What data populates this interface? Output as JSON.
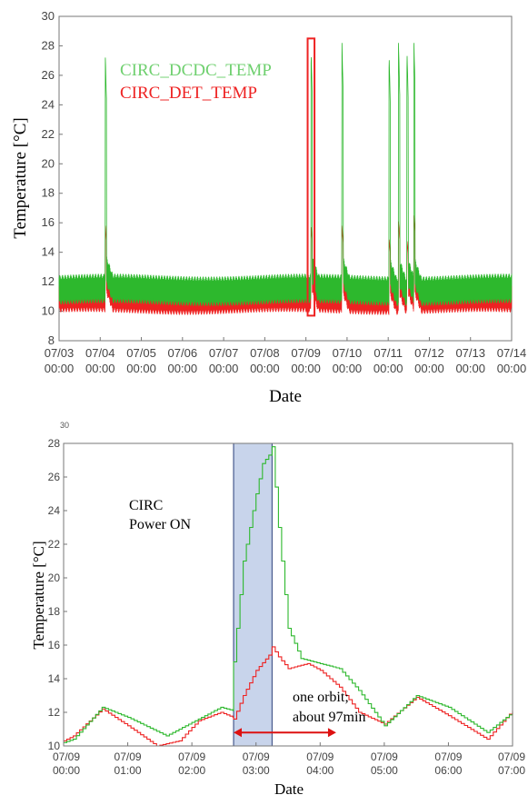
{
  "chart_data": [
    {
      "type": "line",
      "title": "",
      "xlabel": "Date",
      "ylabel": "Temperature [°C]",
      "ylim": [
        8,
        30
      ],
      "yticks": [
        8,
        10,
        12,
        14,
        16,
        18,
        20,
        22,
        24,
        26,
        28,
        30
      ],
      "xlim_days": [
        "07/03 00:00",
        "07/14 00:00"
      ],
      "xticks": [
        [
          "07/03",
          "00:00"
        ],
        [
          "07/04",
          "00:00"
        ],
        [
          "07/05",
          "00:00"
        ],
        [
          "07/06",
          "00:00"
        ],
        [
          "07/07",
          "00:00"
        ],
        [
          "07/08",
          "00:00"
        ],
        [
          "07/09",
          "00:00"
        ],
        [
          "07/10",
          "00:00"
        ],
        [
          "07/11",
          "00:00"
        ],
        [
          "07/12",
          "00:00"
        ],
        [
          "07/13",
          "00:00"
        ],
        [
          "07/14",
          "00:00"
        ]
      ],
      "grid": false,
      "legend_position": "top-left",
      "colors": {
        "CIRC_DCDC_TEMP": "#2db82d",
        "CIRC_DET_TEMP": "#ee2222",
        "highlight": "#ee2222"
      },
      "series": [
        {
          "name": "CIRC_DCDC_TEMP",
          "baseline_range": [
            10.6,
            12.3
          ],
          "power_on_spikes": [
            {
              "date": "07/04 03:00",
              "peak": 27.2
            },
            {
              "date": "07/09 03:00",
              "peak": 27.8
            },
            {
              "date": "07/09 21:00",
              "peak": 28.2
            },
            {
              "date": "07/11 00:30",
              "peak": 27.5
            },
            {
              "date": "07/11 06:00",
              "peak": 28.2
            },
            {
              "date": "07/11 11:00",
              "peak": 27.5
            },
            {
              "date": "07/11 15:00",
              "peak": 28.2
            }
          ]
        },
        {
          "name": "CIRC_DET_TEMP",
          "baseline_range": [
            10.0,
            11.5
          ],
          "power_on_spikes": [
            {
              "date": "07/04 03:00",
              "peak": 15.8
            },
            {
              "date": "07/09 03:00",
              "peak": 15.9
            },
            {
              "date": "07/09 21:00",
              "peak": 15.8
            },
            {
              "date": "07/11 00:30",
              "peak": 15.0
            },
            {
              "date": "07/11 06:00",
              "peak": 16.1
            },
            {
              "date": "07/11 11:00",
              "peak": 14.8
            },
            {
              "date": "07/11 15:00",
              "peak": 16.5
            }
          ]
        }
      ],
      "annotations": [
        {
          "type": "box",
          "x_range": [
            "07/09 01:00",
            "07/09 05:00"
          ],
          "y_range": [
            9.7,
            28.5
          ]
        }
      ]
    },
    {
      "type": "line",
      "title": "",
      "xlabel": "Date",
      "ylabel": "Temperature [°C]",
      "ylim": [
        10,
        28
      ],
      "yticks": [
        10,
        12,
        14,
        16,
        18,
        20,
        22,
        24,
        26,
        28
      ],
      "xlim_hours": [
        0,
        7
      ],
      "xticks": [
        [
          "07/09",
          "00:00"
        ],
        [
          "07/09",
          "01:00"
        ],
        [
          "07/09",
          "02:00"
        ],
        [
          "07/09",
          "03:00"
        ],
        [
          "07/09",
          "04:00"
        ],
        [
          "07/09",
          "05:00"
        ],
        [
          "07/09",
          "06:00"
        ],
        [
          "07/09",
          "07:00"
        ]
      ],
      "grid": false,
      "annotation_text": {
        "power_label": [
          "CIRC",
          "Power ON"
        ],
        "orbit_label": [
          "one orbit;",
          "about 97min"
        ]
      },
      "colors": {
        "CIRC_DCDC_TEMP": "#2db82d",
        "CIRC_DET_TEMP": "#ee2222",
        "shade": "#c8d4eb",
        "arrow": "#dd1111"
      },
      "power_on_window": [
        2.65,
        3.25
      ],
      "orbit_arrow": [
        2.65,
        4.25
      ],
      "orbit_arrow_y": 10.8,
      "series": [
        {
          "name": "CIRC_DCDC_TEMP",
          "x": [
            0,
            0.15,
            0.6,
            1.0,
            1.6,
            2.1,
            2.45,
            2.64,
            2.65,
            2.8,
            3.0,
            3.1,
            3.2,
            3.25,
            3.35,
            3.5,
            3.7,
            4.0,
            4.3,
            4.6,
            5.0,
            5.5,
            6.0,
            6.6,
            7.0
          ],
          "y": [
            10.2,
            10.4,
            12.3,
            11.7,
            10.6,
            11.6,
            12.3,
            12.1,
            15.0,
            21.0,
            25.0,
            26.8,
            27.3,
            27.8,
            23.0,
            17.0,
            15.2,
            14.9,
            14.6,
            13.3,
            11.2,
            13.0,
            12.3,
            10.8,
            12.0
          ]
        },
        {
          "name": "CIRC_DET_TEMP",
          "x": [
            0,
            0.15,
            0.6,
            1.0,
            1.45,
            1.8,
            2.1,
            2.45,
            2.64,
            2.65,
            2.8,
            3.0,
            3.2,
            3.25,
            3.35,
            3.5,
            3.8,
            4.0,
            4.3,
            4.6,
            5.0,
            5.5,
            6.0,
            6.6,
            7.0
          ],
          "y": [
            10.3,
            10.6,
            12.2,
            11.2,
            10.0,
            10.3,
            11.5,
            12.0,
            11.7,
            11.6,
            13.0,
            14.5,
            15.4,
            15.9,
            15.3,
            14.6,
            14.9,
            14.5,
            13.5,
            12.0,
            11.3,
            12.9,
            11.8,
            10.4,
            12.1
          ]
        }
      ]
    }
  ]
}
